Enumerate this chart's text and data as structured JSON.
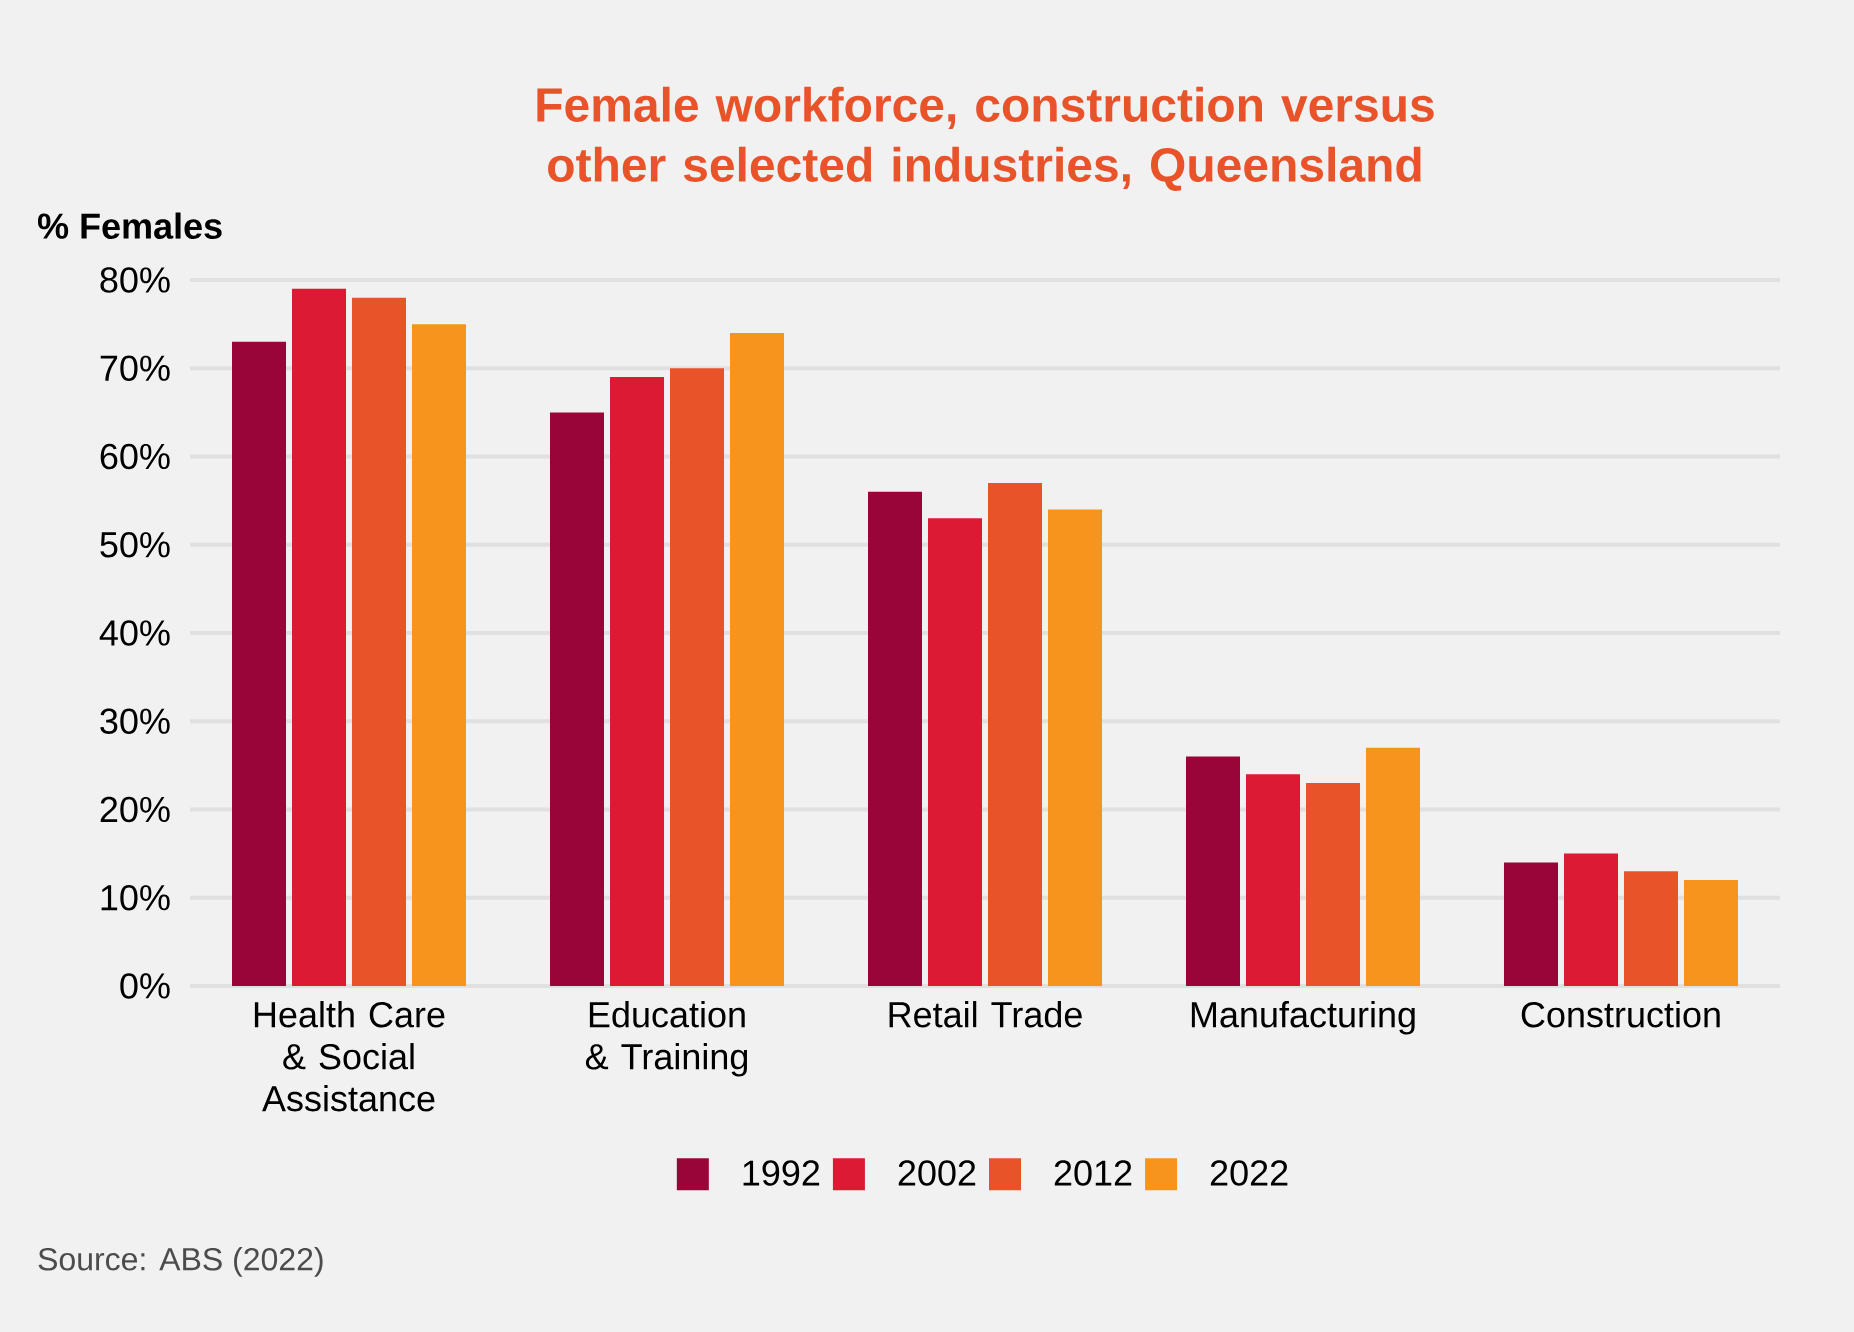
{
  "chart_data": {
    "type": "bar",
    "title": "Female workforce, construction versus other selected industries, Queensland",
    "ylabel": "% Females",
    "categories": [
      "Health Care & Social Assistance",
      "Education & Training",
      "Retail Trade",
      "Manufacturing",
      "Construction"
    ],
    "series": [
      {
        "name": "1992",
        "color": "#990538",
        "values": [
          73,
          65,
          56,
          26,
          14
        ]
      },
      {
        "name": "2002",
        "color": "#dc1a34",
        "values": [
          79,
          69,
          53,
          24,
          15
        ]
      },
      {
        "name": "2012",
        "color": "#e9532a",
        "values": [
          78,
          70,
          57,
          23,
          13
        ]
      },
      {
        "name": "2022",
        "color": "#f7941e",
        "values": [
          75,
          74,
          54,
          27,
          12
        ]
      }
    ],
    "ylim": [
      0,
      80
    ],
    "yticks": [
      {
        "value": 0,
        "label": "0%"
      },
      {
        "value": 10,
        "label": "10%"
      },
      {
        "value": 20,
        "label": "20%"
      },
      {
        "value": 30,
        "label": "30%"
      },
      {
        "value": 40,
        "label": "40%"
      },
      {
        "value": 50,
        "label": "50%"
      },
      {
        "value": 60,
        "label": "60%"
      },
      {
        "value": 70,
        "label": "70%"
      },
      {
        "value": 80,
        "label": "80%"
      }
    ],
    "grid": "y",
    "legend": "bottom",
    "annotations": [
      "Source: ABS (2022)"
    ]
  }
}
